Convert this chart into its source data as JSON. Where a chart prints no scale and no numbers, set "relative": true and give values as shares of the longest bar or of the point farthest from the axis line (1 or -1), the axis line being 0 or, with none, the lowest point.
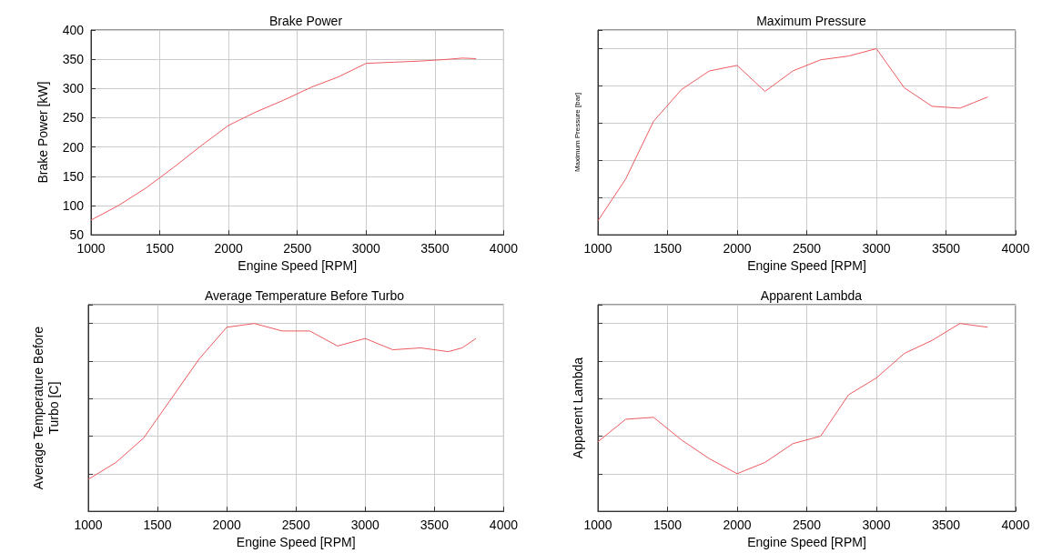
{
  "chart_data": [
    {
      "type": "line",
      "title": "Brake Power",
      "xlabel": "Engine Speed [RPM]",
      "ylabel": "Brake Power [kW]",
      "x": [
        1000,
        1200,
        1400,
        1600,
        1800,
        2000,
        2200,
        2400,
        2600,
        2800,
        3000,
        3200,
        3400,
        3600,
        3700,
        3800
      ],
      "series": [
        {
          "color": "#ee5a5f",
          "values": [
            75,
            100,
            130,
            165,
            202,
            237,
            260,
            280,
            302,
            320,
            343,
            345,
            347,
            350,
            352,
            351
          ]
        }
      ],
      "xlim": [
        1000,
        4000
      ],
      "xticks": [
        1000,
        1500,
        2000,
        2500,
        3000,
        3500,
        4000
      ],
      "ylim": [
        50,
        400
      ],
      "yticks": [
        50,
        100,
        150,
        200,
        250,
        300,
        350,
        400
      ],
      "grid": true,
      "marker": "none"
    },
    {
      "type": "line",
      "title": "Maximum Pressure",
      "xlabel": "Engine Speed [RPM]",
      "ylabel": "Maximum Pressure [bar]",
      "relative": true,
      "tick_labels": "x",
      "x": [
        1000,
        1200,
        1400,
        1600,
        1800,
        2000,
        2200,
        2400,
        2600,
        2800,
        3000,
        3200,
        3400,
        3600,
        3700,
        3800
      ],
      "series": [
        {
          "color": "#ee5a5f",
          "values": [
            0.075,
            0.3,
            0.61,
            0.78,
            0.88,
            0.91,
            0.77,
            0.88,
            0.94,
            0.96,
            1,
            0.79,
            0.69,
            0.68,
            0.71,
            0.74
          ]
        }
      ],
      "xlim": [
        1000,
        4000
      ],
      "xticks": [
        1000,
        1500,
        2000,
        2500,
        3000,
        3500,
        4000
      ],
      "grid": true,
      "marker": "none"
    },
    {
      "type": "line",
      "title": "Average Temperature Before Turbo",
      "xlabel": "Engine Speed [RPM]",
      "ylabel": "Average Temperature Before Turbo [C]",
      "relative": true,
      "tick_labels": "x",
      "x": [
        1000,
        1200,
        1400,
        1600,
        1800,
        2000,
        2200,
        2400,
        2600,
        2800,
        3000,
        3200,
        3400,
        3600,
        3700,
        3800
      ],
      "series": [
        {
          "color": "#ee5a5f",
          "values": [
            0.17,
            0.26,
            0.39,
            0.6,
            0.81,
            0.98,
            1,
            0.96,
            0.96,
            0.88,
            0.92,
            0.86,
            0.87,
            0.85,
            0.87,
            0.92
          ]
        }
      ],
      "xlim": [
        1000,
        4000
      ],
      "xticks": [
        1000,
        1500,
        2000,
        2500,
        3000,
        3500,
        4000
      ],
      "grid": true,
      "marker": "none"
    },
    {
      "type": "line",
      "title": "Apparent Lambda",
      "xlabel": "Engine Speed [RPM]",
      "ylabel": "Apparent Lambda",
      "relative": true,
      "tick_labels": "x",
      "x": [
        1000,
        1200,
        1400,
        1600,
        1800,
        2000,
        2200,
        2400,
        2600,
        2800,
        3000,
        3200,
        3400,
        3600,
        3700,
        3800
      ],
      "series": [
        {
          "color": "#ee5a5f",
          "values": [
            0.37,
            0.49,
            0.5,
            0.38,
            0.28,
            0.2,
            0.26,
            0.36,
            0.4,
            0.62,
            0.71,
            0.84,
            0.91,
            1,
            0.99,
            0.98
          ]
        }
      ],
      "xlim": [
        1000,
        4000
      ],
      "xticks": [
        1000,
        1500,
        2000,
        2500,
        3000,
        3500,
        4000
      ],
      "grid": true,
      "marker": "none"
    }
  ]
}
